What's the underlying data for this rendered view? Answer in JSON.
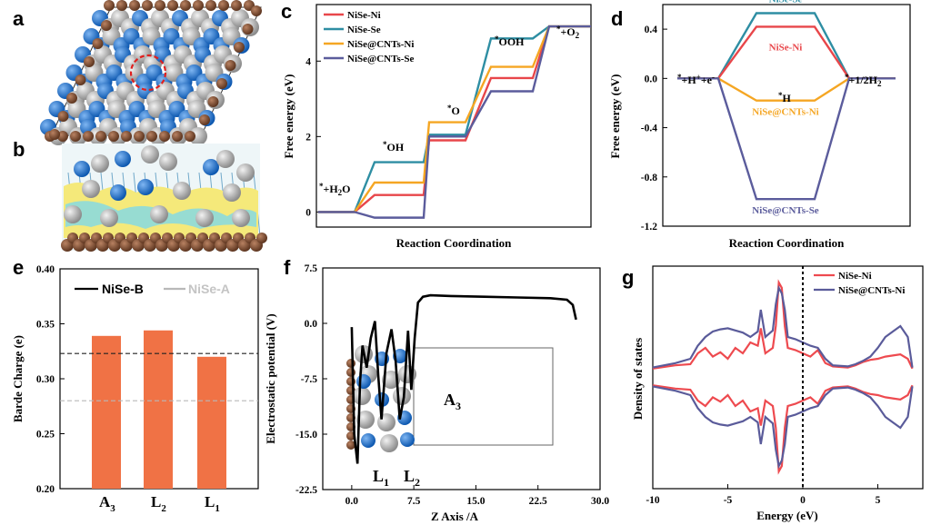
{
  "colors": {
    "nise_ni": "#e8464a",
    "nise_se": "#2e8ea3",
    "nise_cnts_ni": "#f5a623",
    "nise_cnts_se": "#5b5c9c",
    "bar": "#f07245",
    "dos_ni": "#ee4a4f",
    "dos_cnts_ni": "#5a5b9a",
    "ni_atom": "#a9a9a9",
    "se_atom": "#1b6fc8",
    "c_atom": "#7b4a2e",
    "charge_yellow": "#f5e97a",
    "charge_cyan": "#7fd8e8"
  },
  "panel_labels": {
    "a": "a",
    "b": "b",
    "c": "c",
    "d": "d",
    "e": "e",
    "f": "f",
    "g": "g"
  },
  "images": {
    "a": {
      "icons": [
        "nise-slab-top-view",
        "red-dashed-circle-site"
      ]
    },
    "b": {
      "icons": [
        "charge-density-side-view"
      ]
    }
  },
  "chart_data": [
    {
      "panel": "c",
      "type": "line",
      "xlabel": "Reaction Coordination",
      "ylabel": "Free energy (eV)",
      "ylim": [
        -0.4,
        5.5
      ],
      "yticks": [
        0,
        2,
        4
      ],
      "states": [
        "*+H2O",
        "*OH",
        "*O",
        "*OOH",
        "*+O2"
      ],
      "state_labels": {
        "s0": "*",
        "s0b": "+H",
        "s0c": "2",
        "s0d": "O",
        "s1": "*",
        "s1b": "OH",
        "s2": "*",
        "s2b": "O",
        "s3": "*",
        "s3b": "OOH",
        "s4": "*",
        "s4b": "+O",
        "s4c": "2"
      },
      "series": [
        {
          "name": "NiSe-Ni",
          "values": [
            0,
            0.45,
            1.9,
            3.55,
            4.92
          ]
        },
        {
          "name": "NiSe-Se",
          "values": [
            0,
            1.32,
            2.05,
            4.6,
            4.92
          ]
        },
        {
          "name": "NiSe@CNTs-Ni",
          "values": [
            0,
            0.78,
            2.38,
            3.85,
            4.92
          ]
        },
        {
          "name": "NiSe@CNTs-Se",
          "values": [
            0,
            -0.15,
            2.0,
            3.2,
            4.92
          ]
        }
      ],
      "legend": "top-left"
    },
    {
      "panel": "d",
      "type": "line",
      "xlabel": "Reaction Coordination",
      "ylabel": "Free energy (eV)",
      "ylim": [
        -1.2,
        0.6
      ],
      "yticks": [
        "0.4",
        "0.0",
        "-0.4",
        "-0.8",
        "-1.2"
      ],
      "states": [
        "*+H++e-",
        "*H",
        "*+1/2H2"
      ],
      "state_labels": {
        "s0": "*",
        "s0b": "+H",
        "s0c": "+",
        "s0d": "+e",
        "s0e": "-",
        "s1": "*",
        "s1b": "H",
        "s2": "*",
        "s2b": "+1/2H",
        "s2c": "2"
      },
      "series": [
        {
          "name": "NiSe-Se",
          "values": [
            0,
            0.53,
            0
          ]
        },
        {
          "name": "NiSe-Ni",
          "values": [
            0,
            0.42,
            0
          ]
        },
        {
          "name": "NiSe@CNTs-Ni",
          "values": [
            0,
            -0.18,
            0
          ]
        },
        {
          "name": "NiSe@CNTs-Se",
          "values": [
            0,
            -0.98,
            0
          ]
        }
      ]
    },
    {
      "panel": "e",
      "type": "bar",
      "ylabel": "Barde Charge (e)",
      "ylim": [
        0.2,
        0.4
      ],
      "yticks": [
        "0.20",
        "0.25",
        "0.30",
        "0.35",
        "0.40"
      ],
      "categories": [
        {
          "main": "A",
          "sub": "3"
        },
        {
          "main": "L",
          "sub": "2"
        },
        {
          "main": "L",
          "sub": "1"
        }
      ],
      "values": [
        0.339,
        0.344,
        0.32
      ],
      "reference_lines": [
        {
          "name": "NiSe-B",
          "value": 0.323,
          "color": "#222222"
        },
        {
          "name": "NiSe-A",
          "value": 0.28,
          "color": "#b8b8b8"
        }
      ],
      "legend": "top"
    },
    {
      "panel": "f",
      "type": "line",
      "xlabel": "Z Axis /A",
      "ylabel": "Electrostatic potential (V)",
      "xlim": [
        -3.5,
        30
      ],
      "ylim": [
        -22.5,
        7.5
      ],
      "xticks": [
        "0.0",
        "7.5",
        "15.0",
        "22.5",
        "30.0"
      ],
      "yticks": [
        "7.5",
        "0.0",
        "-7.5",
        "-15.0",
        "-22.5"
      ],
      "x": [
        0,
        0.3,
        0.7,
        1.0,
        1.3,
        1.8,
        2.3,
        2.8,
        3.2,
        3.6,
        4.2,
        4.8,
        5.3,
        5.8,
        6.3,
        6.8,
        7.2,
        7.6,
        8.0,
        8.6,
        9.5,
        12,
        16,
        20,
        24,
        26,
        26.7,
        27.1
      ],
      "y": [
        -0.5,
        -15,
        -19,
        -8,
        -3,
        -6,
        -2,
        0.3,
        -7,
        -13,
        -4,
        -0.8,
        -5,
        -13,
        -10,
        -1,
        -9,
        -2,
        2.8,
        3.6,
        3.8,
        3.7,
        3.6,
        3.5,
        3.4,
        3.2,
        2.5,
        0.5
      ],
      "annotations": [
        {
          "main": "A",
          "sub": "3"
        },
        {
          "main": "L",
          "sub": "1"
        },
        {
          "main": "L",
          "sub": "2"
        }
      ]
    },
    {
      "panel": "g",
      "type": "line",
      "xlabel": "Energy (eV)",
      "ylabel": "Density of states",
      "xlim": [
        -10,
        8
      ],
      "xticks": [
        "-10",
        "-5",
        "0",
        "5"
      ],
      "fermi_level": 0,
      "series": [
        {
          "name": "NiSe-Ni",
          "x": [
            -10,
            -8.5,
            -7.5,
            -7,
            -6.5,
            -6,
            -5.5,
            -5,
            -4.5,
            -4,
            -3.5,
            -3,
            -2.8,
            -2.5,
            -2,
            -1.8,
            -1.6,
            -1.4,
            -1.2,
            -1,
            -0.5,
            0,
            0.5,
            1,
            1.5,
            2,
            3,
            3.5,
            4,
            4.5,
            5,
            5.5,
            6,
            6.5,
            7,
            7.3
          ],
          "values": [
            0.1,
            0.4,
            0.5,
            1.5,
            2.0,
            1.2,
            1.6,
            1.0,
            2.0,
            1.5,
            2.5,
            2.2,
            3.8,
            1.5,
            2.0,
            4.0,
            8.0,
            7.5,
            4.0,
            2.0,
            1.8,
            1.5,
            1.2,
            1.8,
            0.6,
            0.3,
            0.2,
            0.4,
            0.7,
            0.9,
            1.0,
            1.2,
            1.3,
            1.4,
            1.0,
            0.1
          ]
        },
        {
          "name": "NiSe@CNTs-Ni",
          "x": [
            -10,
            -8.5,
            -7.5,
            -7,
            -6.5,
            -6,
            -5.5,
            -5,
            -4.5,
            -4,
            -3.5,
            -3,
            -2.8,
            -2.5,
            -2,
            -1.8,
            -1.6,
            -1.4,
            -1.2,
            -1,
            -0.5,
            0,
            0.5,
            1,
            1.5,
            2,
            3,
            3.5,
            4,
            4.5,
            5,
            5.5,
            6,
            6.5,
            7,
            7.3
          ],
          "values": [
            0.2,
            0.6,
            1.0,
            2.2,
            3.0,
            3.5,
            3.7,
            3.8,
            3.6,
            3.4,
            3.0,
            3.5,
            5.5,
            3.0,
            3.6,
            6.0,
            7.5,
            7.0,
            5.5,
            3.0,
            2.8,
            2.5,
            2.2,
            2.0,
            1.0,
            0.4,
            0.3,
            0.5,
            0.8,
            1.2,
            2.0,
            3.0,
            3.5,
            4.0,
            3.0,
            0.2
          ]
        }
      ],
      "legend": "top-right"
    }
  ]
}
